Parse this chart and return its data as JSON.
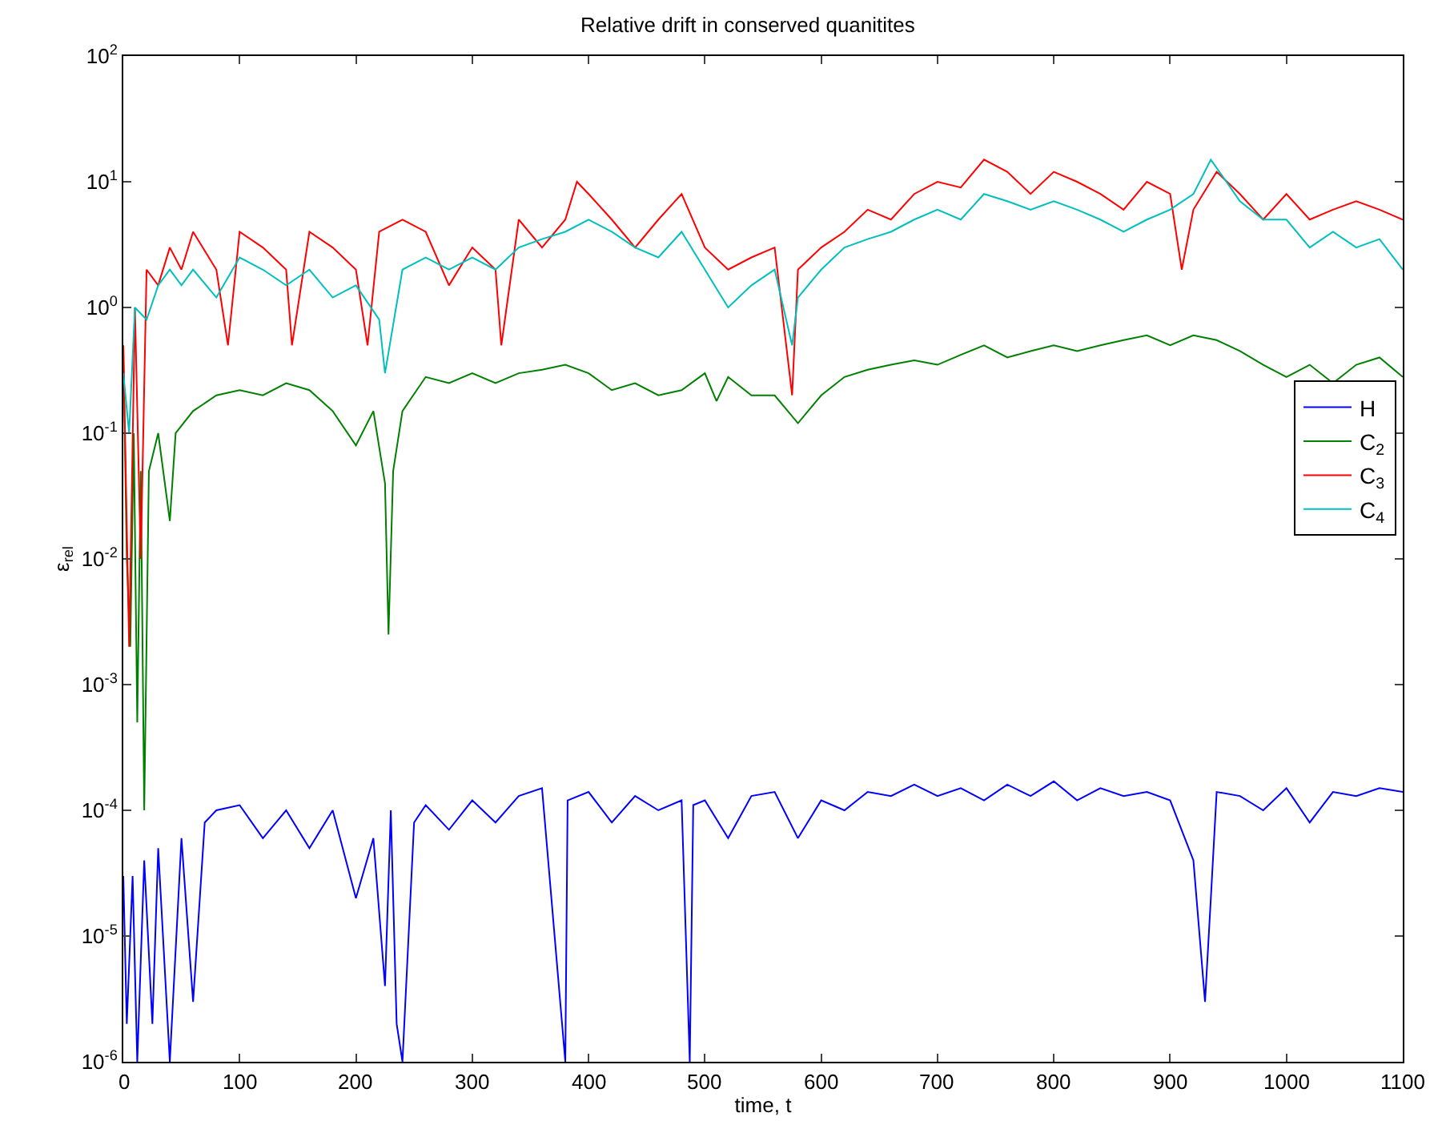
{
  "chart_data": {
    "type": "line",
    "title": "Relative drift in conserved quanitites",
    "xlabel": "time, t",
    "ylabel": "ε$_{rel}$",
    "log": "y",
    "legend": "right",
    "marker": "none",
    "line_style": "solid",
    "xlim": [
      0,
      1100
    ],
    "xticks": [
      0,
      100,
      200,
      300,
      400,
      500,
      600,
      700,
      800,
      900,
      1000,
      1100
    ],
    "ylim": [
      1e-06,
      100
    ],
    "yticks": [
      {
        "value": 1e-06,
        "label": "10$^{-6}$"
      },
      {
        "value": 1e-05,
        "label": "10$^{-5}$"
      },
      {
        "value": 0.0001,
        "label": "10$^{-4}$"
      },
      {
        "value": 0.001,
        "label": "10$^{-3}$"
      },
      {
        "value": 0.01,
        "label": "10$^{-2}$"
      },
      {
        "value": 0.1,
        "label": "10$^{-1}$"
      },
      {
        "value": 1,
        "label": "10$^{0}$"
      },
      {
        "value": 10,
        "label": "10$^{1}$"
      },
      {
        "value": 100,
        "label": "10$^{2}$"
      }
    ],
    "series": [
      {
        "name": "H",
        "color": "#0000ff",
        "x": [
          0,
          3,
          8,
          12,
          18,
          25,
          30,
          40,
          50,
          60,
          70,
          80,
          100,
          120,
          140,
          160,
          180,
          200,
          215,
          225,
          230,
          235,
          240,
          250,
          260,
          280,
          300,
          320,
          340,
          360,
          380,
          382,
          400,
          420,
          440,
          460,
          480,
          487,
          490,
          500,
          520,
          540,
          560,
          580,
          600,
          620,
          640,
          660,
          680,
          700,
          720,
          740,
          760,
          780,
          800,
          820,
          840,
          860,
          880,
          900,
          920,
          930,
          935,
          940,
          960,
          980,
          1000,
          1020,
          1040,
          1060,
          1080,
          1100
        ],
        "values": [
          3e-05,
          2e-06,
          3e-05,
          1e-06,
          4e-05,
          2e-06,
          5e-05,
          1e-06,
          6e-05,
          3e-06,
          8e-05,
          0.0001,
          0.00011,
          6e-05,
          0.0001,
          5e-05,
          0.0001,
          2e-05,
          6e-05,
          4e-06,
          0.0001,
          2e-06,
          1e-06,
          8e-05,
          0.00011,
          7e-05,
          0.00012,
          8e-05,
          0.00013,
          0.00015,
          1e-06,
          0.00012,
          0.00014,
          8e-05,
          0.00013,
          0.0001,
          0.00012,
          1e-06,
          0.00011,
          0.00012,
          6e-05,
          0.00013,
          0.00014,
          6e-05,
          0.00012,
          0.0001,
          0.00014,
          0.00013,
          0.00016,
          0.00013,
          0.00015,
          0.00012,
          0.00016,
          0.00013,
          0.00017,
          0.00012,
          0.00015,
          0.00013,
          0.00014,
          0.00012,
          4e-05,
          3e-06,
          2e-05,
          0.00014,
          0.00013,
          0.0001,
          0.00015,
          8e-05,
          0.00014,
          0.00013,
          0.00015,
          0.00014
        ]
      },
      {
        "name": "C$_{2}$",
        "color": "#008000",
        "x": [
          0,
          3,
          6,
          9,
          12,
          15,
          18,
          22,
          30,
          40,
          45,
          60,
          80,
          100,
          120,
          140,
          160,
          180,
          200,
          215,
          225,
          228,
          232,
          240,
          260,
          280,
          300,
          320,
          340,
          360,
          380,
          400,
          420,
          440,
          460,
          480,
          500,
          510,
          520,
          540,
          560,
          580,
          600,
          620,
          640,
          660,
          680,
          700,
          720,
          740,
          760,
          780,
          800,
          820,
          840,
          860,
          880,
          900,
          920,
          940,
          960,
          980,
          1000,
          1020,
          1040,
          1060,
          1080,
          1100
        ],
        "values": [
          0.5,
          0.01,
          0.002,
          0.1,
          0.0005,
          0.05,
          0.0001,
          0.05,
          0.1,
          0.02,
          0.1,
          0.15,
          0.2,
          0.22,
          0.2,
          0.25,
          0.22,
          0.15,
          0.08,
          0.15,
          0.04,
          0.0025,
          0.05,
          0.15,
          0.28,
          0.25,
          0.3,
          0.25,
          0.3,
          0.32,
          0.35,
          0.3,
          0.22,
          0.25,
          0.2,
          0.22,
          0.3,
          0.18,
          0.28,
          0.2,
          0.2,
          0.12,
          0.2,
          0.28,
          0.32,
          0.35,
          0.38,
          0.35,
          0.42,
          0.5,
          0.4,
          0.45,
          0.5,
          0.45,
          0.5,
          0.55,
          0.6,
          0.5,
          0.6,
          0.55,
          0.45,
          0.35,
          0.28,
          0.35,
          0.25,
          0.35,
          0.4,
          0.28
        ]
      },
      {
        "name": "C$_{3}$",
        "color": "#ff0000",
        "x": [
          0,
          5,
          10,
          15,
          20,
          30,
          40,
          50,
          60,
          80,
          90,
          100,
          120,
          140,
          145,
          160,
          180,
          200,
          210,
          220,
          240,
          260,
          280,
          300,
          320,
          325,
          340,
          360,
          380,
          390,
          400,
          420,
          440,
          460,
          480,
          500,
          520,
          540,
          560,
          575,
          580,
          600,
          620,
          640,
          660,
          680,
          700,
          720,
          740,
          760,
          780,
          800,
          820,
          840,
          860,
          880,
          900,
          910,
          920,
          940,
          960,
          980,
          1000,
          1020,
          1040,
          1060,
          1080,
          1100
        ],
        "values": [
          0.5,
          0.002,
          1,
          0.01,
          2,
          1.5,
          3,
          2,
          4,
          2,
          0.5,
          4,
          3,
          2,
          0.5,
          4,
          3,
          2,
          0.5,
          4,
          5,
          4,
          1.5,
          3,
          2,
          0.5,
          5,
          3,
          5,
          10,
          8,
          5,
          3,
          5,
          8,
          3,
          2,
          2.5,
          3,
          0.2,
          2,
          3,
          4,
          6,
          5,
          8,
          10,
          9,
          15,
          12,
          8,
          12,
          10,
          8,
          6,
          10,
          8,
          2,
          6,
          12,
          8,
          5,
          8,
          5,
          6,
          7,
          6,
          5
        ]
      },
      {
        "name": "C$_{4}$",
        "color": "#00bfbf",
        "x": [
          0,
          5,
          10,
          20,
          30,
          40,
          50,
          60,
          80,
          100,
          120,
          140,
          160,
          180,
          200,
          220,
          225,
          240,
          260,
          280,
          300,
          320,
          340,
          360,
          380,
          400,
          420,
          440,
          460,
          480,
          500,
          520,
          540,
          560,
          575,
          580,
          600,
          620,
          640,
          660,
          680,
          700,
          720,
          740,
          760,
          780,
          800,
          820,
          840,
          860,
          880,
          900,
          920,
          935,
          960,
          980,
          1000,
          1020,
          1040,
          1060,
          1080,
          1100
        ],
        "values": [
          0.3,
          0.1,
          1,
          0.8,
          1.5,
          2,
          1.5,
          2,
          1.2,
          2.5,
          2,
          1.5,
          2,
          1.2,
          1.5,
          0.8,
          0.3,
          2,
          2.5,
          2,
          2.5,
          2,
          3,
          3.5,
          4,
          5,
          4,
          3,
          2.5,
          4,
          2,
          1,
          1.5,
          2,
          0.5,
          1.2,
          2,
          3,
          3.5,
          4,
          5,
          6,
          5,
          8,
          7,
          6,
          7,
          6,
          5,
          4,
          5,
          6,
          8,
          15,
          7,
          5,
          5,
          3,
          4,
          3,
          3.5,
          2
        ]
      }
    ]
  }
}
